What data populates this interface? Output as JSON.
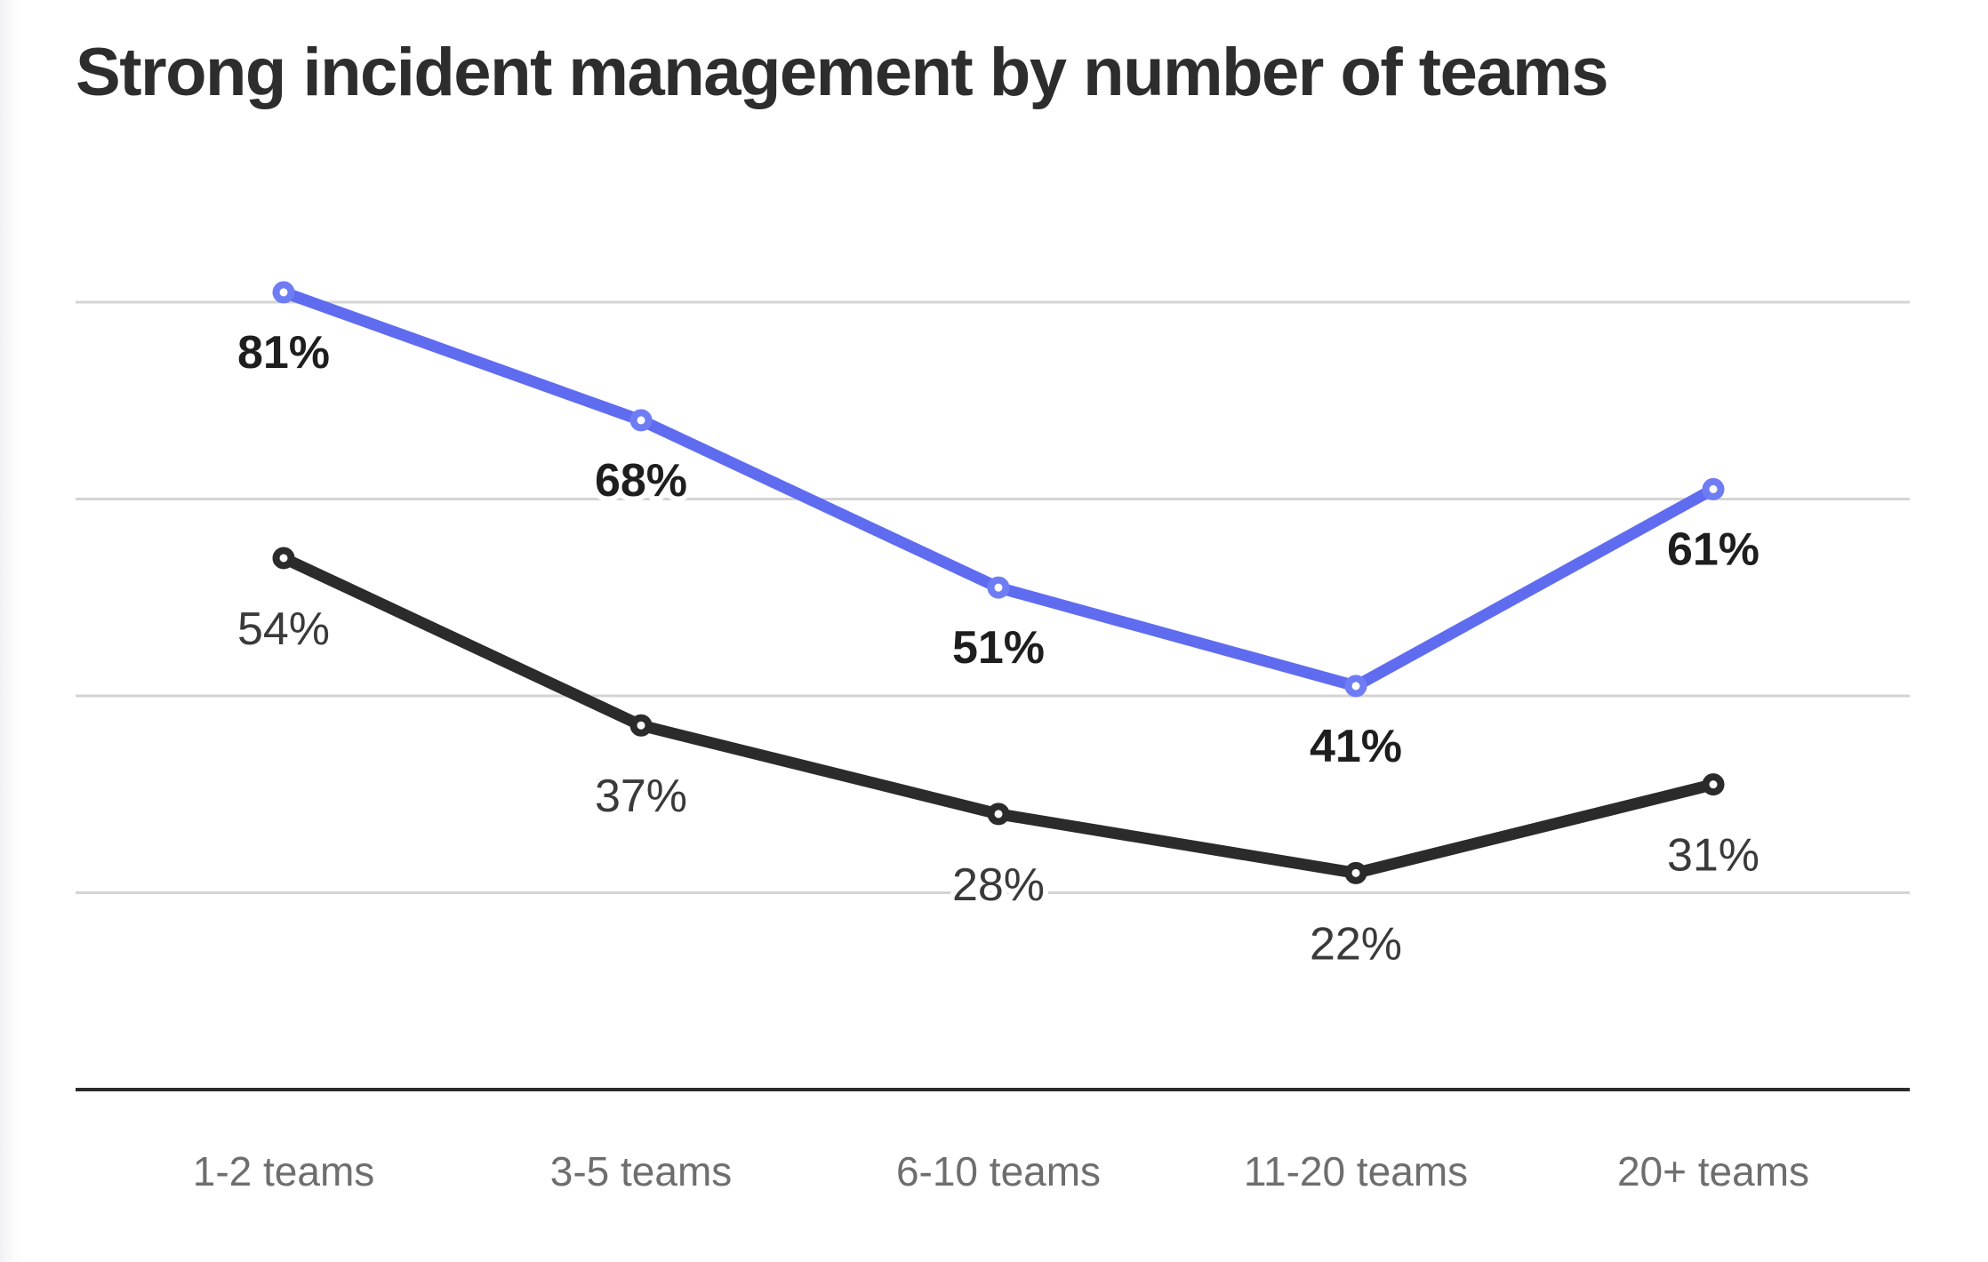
{
  "title": "Strong incident management by number of teams",
  "chart_data": {
    "type": "line",
    "title": "Strong incident management by number of teams",
    "categories": [
      "1-2 teams",
      "3-5 teams",
      "6-10 teams",
      "11-20 teams",
      "20+ teams"
    ],
    "series": [
      {
        "name": "black",
        "color": "#2b2b2b",
        "marker_color": "#2b2b2b",
        "values": [
          54,
          37,
          28,
          22,
          31
        ],
        "labels": [
          "54%",
          "37%",
          "28%",
          "22%",
          "31%"
        ],
        "label_bold": false,
        "label_color": "#3a3a3a"
      },
      {
        "name": "blue",
        "color": "#5f6cf0",
        "marker_color": "#6f7df4",
        "values": [
          81,
          68,
          51,
          41,
          61
        ],
        "labels": [
          "81%",
          "68%",
          "51%",
          "41%",
          "61%"
        ],
        "label_bold": true,
        "label_color": "#1e1e1e"
      }
    ],
    "ylim": [
      0,
      100
    ],
    "gridline_values": [
      80,
      60,
      40,
      20
    ],
    "grid": "horizontal",
    "legend": "none",
    "value_label_format": "percent"
  },
  "colors": {
    "background": "#ffffff",
    "title": "#2d2d2d",
    "gridline": "#d4d4d4",
    "axis": "#2b2b2b",
    "x_labels": "#6e6e6e"
  }
}
